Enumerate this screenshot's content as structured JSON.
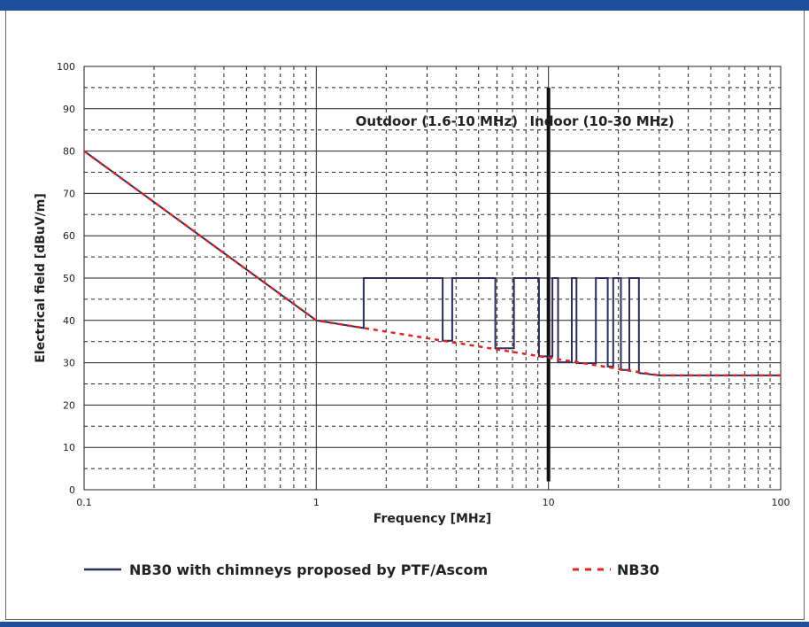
{
  "chart_data": {
    "type": "line",
    "xlabel": "Frequency [MHz]",
    "ylabel": "Electrical field [dBuV/m]",
    "x_scale": "log",
    "xlim": [
      0.1,
      100
    ],
    "ylim": [
      0,
      100
    ],
    "x_ticks": [
      "0.1",
      "1",
      "10",
      "100"
    ],
    "y_ticks": [
      "0",
      "10",
      "20",
      "30",
      "40",
      "50",
      "60",
      "70",
      "80",
      "90",
      "100"
    ],
    "grid": true,
    "annotations": [
      {
        "text": "Outdoor (1.6-10 MHz)",
        "x": 3.3,
        "y": 87
      },
      {
        "text": "Indoor (10-30 MHz)",
        "x": 17,
        "y": 87
      }
    ],
    "divider": {
      "x": 10,
      "y_from": 2,
      "y_to": 95
    },
    "series": [
      {
        "name": "NB30 with chimneys proposed by PTF/Ascom",
        "color": "#2b2f5c",
        "style": "solid",
        "x": [
          0.1,
          1,
          1.6,
          1.6,
          3.5,
          3.5,
          3.85,
          3.85,
          5.9,
          5.9,
          7.1,
          7.1,
          9.1,
          9.1,
          10.4,
          10.4,
          11.0,
          11.0,
          12.6,
          12.6,
          13.2,
          13.2,
          16.0,
          16.0,
          18.0,
          18.0,
          19.0,
          19.0,
          20.5,
          20.5,
          22.3,
          22.3,
          24.5,
          24.5,
          30,
          100
        ],
        "y": [
          80,
          40,
          38.2,
          50,
          50,
          35.2,
          35.2,
          50,
          50,
          33.4,
          33.4,
          50,
          50,
          31.5,
          31.5,
          50,
          50,
          30.1,
          30.1,
          50,
          50,
          29.9,
          29.9,
          50,
          50,
          29.1,
          29.1,
          50,
          50,
          28.3,
          28.3,
          50,
          50,
          27.6,
          27,
          27
        ]
      },
      {
        "name": "NB30",
        "color": "#e02424",
        "style": "dashed",
        "x": [
          0.1,
          1,
          30,
          100
        ],
        "y": [
          80,
          40,
          27,
          27
        ]
      }
    ],
    "legend_position": "bottom"
  }
}
